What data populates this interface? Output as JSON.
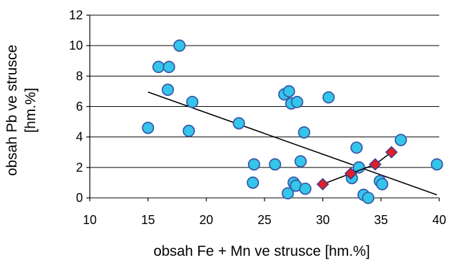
{
  "chart_data": {
    "type": "scatter",
    "title": "",
    "xlabel": "obsah Fe + Mn ve strusce [hm.%]",
    "ylabel_lines": [
      "obsah Pb ve strusce",
      "[hm.%]"
    ],
    "xlim": [
      10,
      40
    ],
    "ylim": [
      0,
      12
    ],
    "x_ticks": [
      "10",
      "15",
      "20",
      "25",
      "30",
      "35",
      "40"
    ],
    "y_ticks": [
      "0",
      "2",
      "4",
      "6",
      "8",
      "10",
      "12"
    ],
    "grid": "horizontal",
    "legend": "none",
    "series": [
      {
        "marker": "circle",
        "color": "#33c6ea",
        "edge_color": "#3a5aa8",
        "points": [
          [
            15,
            4.6
          ],
          [
            15.9,
            8.6
          ],
          [
            16.7,
            7.1
          ],
          [
            16.8,
            8.6
          ],
          [
            17.7,
            10.0
          ],
          [
            18.5,
            4.4
          ],
          [
            18.8,
            6.3
          ],
          [
            22.8,
            4.9
          ],
          [
            24.0,
            1.0
          ],
          [
            24.1,
            2.2
          ],
          [
            25.9,
            2.2
          ],
          [
            26.7,
            6.8
          ],
          [
            27.0,
            0.3
          ],
          [
            27.1,
            7.0
          ],
          [
            27.3,
            6.2
          ],
          [
            27.5,
            1.0
          ],
          [
            27.7,
            0.8
          ],
          [
            27.8,
            6.3
          ],
          [
            28.1,
            2.4
          ],
          [
            28.4,
            4.3
          ],
          [
            28.5,
            0.6
          ],
          [
            30.5,
            6.6
          ],
          [
            32.5,
            1.3
          ],
          [
            32.9,
            3.3
          ],
          [
            33.1,
            2.0
          ],
          [
            33.5,
            0.2
          ],
          [
            33.9,
            0.0
          ],
          [
            34.9,
            1.1
          ],
          [
            35.1,
            0.9
          ],
          [
            36.7,
            3.8
          ],
          [
            39.8,
            2.2
          ]
        ]
      },
      {
        "marker": "diamond",
        "color": "#e01f2a",
        "edge_color": "#3a3a8a",
        "points": [
          [
            30.0,
            0.9
          ],
          [
            32.4,
            1.6
          ],
          [
            34.5,
            2.2
          ],
          [
            35.9,
            3.0
          ]
        ],
        "connect": true
      }
    ],
    "trendline": {
      "x": [
        15,
        39.8
      ],
      "y": [
        6.95,
        0.2
      ],
      "color": "#000000"
    }
  }
}
